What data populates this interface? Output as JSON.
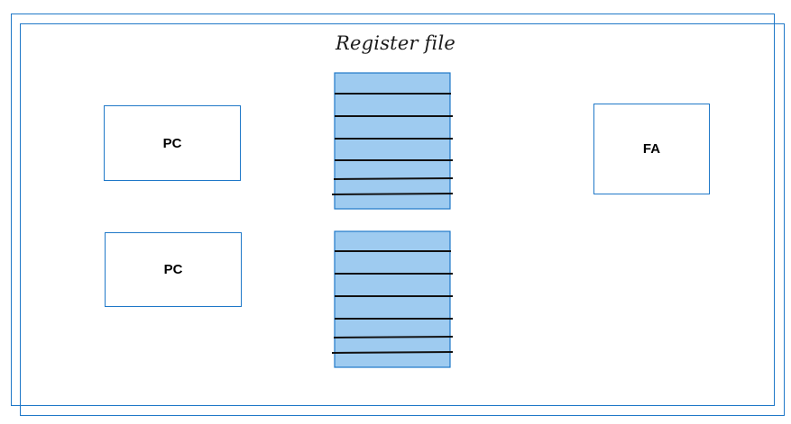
{
  "diagram": {
    "title": "Register file",
    "components": [
      {
        "id": "pc-top",
        "label": "PC"
      },
      {
        "id": "pc-bottom",
        "label": "PC"
      },
      {
        "id": "fa",
        "label": "FA"
      }
    ],
    "register_files": {
      "count": 2,
      "fill_color": "#9ecbf0",
      "line_color": "#111111",
      "border_color": "#1f78c8"
    },
    "colors": {
      "frame": "#1f78c8",
      "box_border": "#1f78c8",
      "background": "#ffffff"
    }
  }
}
